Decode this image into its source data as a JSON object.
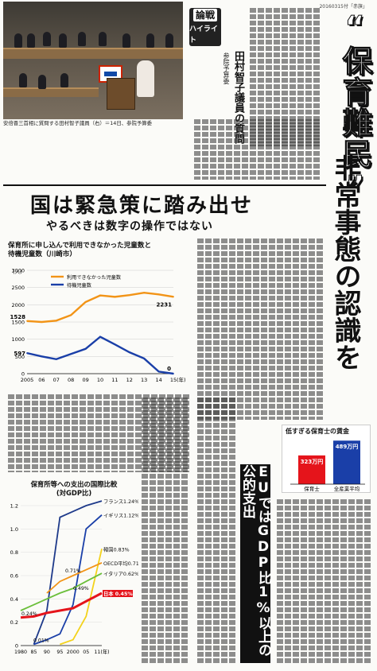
{
  "date": "20160315付「赤旗」",
  "kicker": [
    "論戦",
    "ハイライト"
  ],
  "byline": {
    "prefix": "参院予算委",
    "name": "田村智子議員の質問"
  },
  "title": "“保育難民”",
  "subtitle": "非常事態の認識を",
  "headline": "国は緊急策に踏み出せ",
  "subhead": "やるべきは数字の操作ではない",
  "eu_banner": "EUではGDP比1%以上の公的支出",
  "photo_caption": "安倍晋三首相に質問する田村智子議員（右）＝14日、参院予算委",
  "chart1": {
    "title_line1": "保育所に申し込んで利用できなかった児童数と",
    "title_line2": "待機児童数（川崎市）",
    "y_unit": "(人)",
    "legend": [
      "利用できなかった児童数",
      "待機児童数"
    ],
    "x_unit": "(年)",
    "labels": {
      "start_a": "1528",
      "start_b": "597",
      "end_a": "2231",
      "end_b": "0"
    }
  },
  "chart2": {
    "title_line1": "保育所等への支出の国際比較",
    "title_line2": "(対GDP比)",
    "y_ticks": [
      "1.2",
      "1.0",
      "0.8",
      "0.6",
      "0.4",
      "0.2",
      "0"
    ],
    "x_ticks": [
      "1980",
      "85",
      "90",
      "95",
      "2000",
      "05",
      "11(年)"
    ],
    "legend": [
      "フランス1.24%",
      "イギリス1.12%",
      "韓国0.83%",
      "OECD平均0.71%",
      "イタリア0.62%",
      "日本 0.45%"
    ],
    "inline_labels": [
      "0.71%",
      "0.49%",
      "0.24%",
      "0.01%"
    ]
  },
  "chart3": {
    "title": "低すぎる保育士の賃金",
    "values_label": [
      "323万円",
      "489万円"
    ],
    "categories": [
      "保育士",
      "全産業平均"
    ]
  },
  "chart_data": [
    {
      "type": "line",
      "title": "保育所に申し込んで利用できなかった児童数と待機児童数（川崎市）",
      "x": [
        "2005",
        "06",
        "07",
        "08",
        "09",
        "10",
        "11",
        "12",
        "13",
        "14",
        "15"
      ],
      "ylim": [
        0,
        3000
      ],
      "series": [
        {
          "name": "利用できなかった児童数",
          "values": [
            1528,
            1500,
            1540,
            1700,
            2080,
            2270,
            2230,
            2280,
            2350,
            2300,
            2231
          ]
        },
        {
          "name": "待機児童数",
          "values": [
            597,
            500,
            420,
            570,
            720,
            1070,
            850,
            620,
            440,
            60,
            0
          ]
        }
      ]
    },
    {
      "type": "line",
      "title": "保育所等への支出の国際比較(対GDP比)",
      "x": [
        "1980",
        "85",
        "90",
        "95",
        "2000",
        "05",
        "11"
      ],
      "ylim": [
        0,
        1.2
      ],
      "series": [
        {
          "name": "フランス",
          "values": [
            null,
            0.01,
            0.3,
            1.1,
            1.15,
            1.2,
            1.24
          ]
        },
        {
          "name": "イギリス",
          "values": [
            null,
            0.01,
            0.05,
            0.1,
            0.35,
            1.0,
            1.12
          ]
        },
        {
          "name": "韓国",
          "values": [
            null,
            null,
            null,
            0.01,
            0.05,
            0.25,
            0.83
          ]
        },
        {
          "name": "OECD平均",
          "values": [
            null,
            null,
            0.45,
            0.55,
            0.6,
            0.65,
            0.71
          ]
        },
        {
          "name": "イタリア",
          "values": [
            0.3,
            0.35,
            0.4,
            0.45,
            0.49,
            0.55,
            0.62
          ]
        },
        {
          "name": "日本",
          "values": [
            0.24,
            0.25,
            0.28,
            0.3,
            0.32,
            0.38,
            0.45
          ]
        }
      ]
    },
    {
      "type": "bar",
      "title": "低すぎる保育士の賃金",
      "categories": [
        "保育士",
        "全産業平均"
      ],
      "values": [
        323,
        489
      ],
      "ylabel": "万円"
    }
  ],
  "colors": {
    "red": "#e5141b",
    "blue": "#1a3fa8",
    "navy": "#1e3a8a",
    "yellow": "#f3d21b",
    "orange": "#f29417",
    "green": "#6bbf3a",
    "ink": "#111111"
  }
}
